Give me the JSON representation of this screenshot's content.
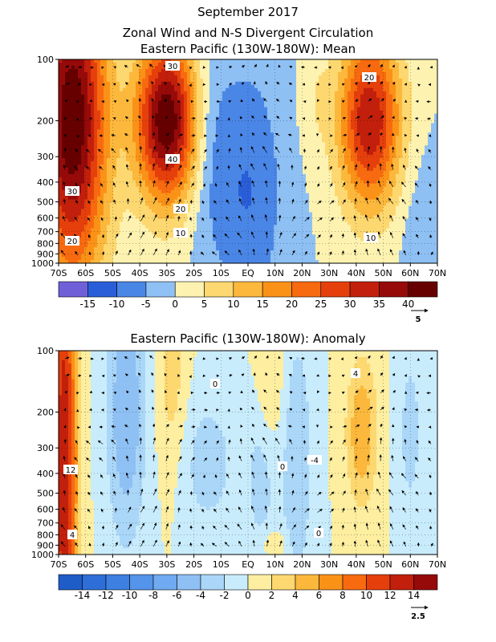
{
  "header": {
    "title": "September 2017",
    "subtitle": "Zonal Wind and N-S Divergent Circulation"
  },
  "chart_data": [
    {
      "type": "heatmap",
      "panel_title": "Eastern Pacific (130W-180W): Mean",
      "x_tick_labels": [
        "70S",
        "60S",
        "50S",
        "40S",
        "30S",
        "20S",
        "10S",
        "EQ",
        "10N",
        "20N",
        "30N",
        "40N",
        "50N",
        "60N",
        "70N"
      ],
      "x_values": [
        -70,
        -60,
        -50,
        -40,
        -30,
        -20,
        -10,
        0,
        10,
        20,
        30,
        40,
        50,
        60,
        70
      ],
      "y_tick_labels": [
        "100",
        "200",
        "300",
        "400",
        "500",
        "600",
        "700",
        "800",
        "900",
        "1000"
      ],
      "y_values": [
        100,
        200,
        300,
        400,
        500,
        600,
        700,
        800,
        900,
        1000
      ],
      "y_scale": "log-pressure (inverted)",
      "colorbar": {
        "levels": [
          -20,
          -15,
          -10,
          -5,
          0,
          5,
          10,
          15,
          20,
          25,
          30,
          35,
          40,
          45
        ],
        "labels": [
          "-15",
          "-10",
          "-5",
          "0",
          "5",
          "10",
          "15",
          "20",
          "25",
          "30",
          "35",
          "40"
        ],
        "colors": [
          "#7060d8",
          "#2a5ed8",
          "#4a86e6",
          "#8ec0f4",
          "#fdf2b0",
          "#fdd870",
          "#fcb83c",
          "#fb9218",
          "#f76a10",
          "#e5400c",
          "#c2200c",
          "#960a0a",
          "#660000"
        ]
      },
      "contour_labels": [
        "30",
        "40",
        "20",
        "10",
        "20",
        "30",
        "20",
        "10"
      ],
      "reference_vector": "5",
      "wind_max_cores": [
        {
          "lat": -65,
          "pressure": 200,
          "value": 45
        },
        {
          "lat": -30,
          "pressure": 200,
          "value": 45
        },
        {
          "lat": 45,
          "pressure": 200,
          "value": 35
        }
      ],
      "wind_min_core": {
        "lat": 0,
        "pressure": 450,
        "value": -10
      }
    },
    {
      "type": "heatmap",
      "panel_title": "Eastern Pacific (130W-180W): Anomaly",
      "x_tick_labels": [
        "70S",
        "60S",
        "50S",
        "40S",
        "30S",
        "20S",
        "10S",
        "EQ",
        "10N",
        "20N",
        "30N",
        "40N",
        "50N",
        "60N",
        "70N"
      ],
      "x_values": [
        -70,
        -60,
        -50,
        -40,
        -30,
        -20,
        -10,
        0,
        10,
        20,
        30,
        40,
        50,
        60,
        70
      ],
      "y_tick_labels": [
        "100",
        "200",
        "300",
        "400",
        "500",
        "600",
        "700",
        "800",
        "900",
        "1000"
      ],
      "y_values": [
        100,
        200,
        300,
        400,
        500,
        600,
        700,
        800,
        900,
        1000
      ],
      "y_scale": "log-pressure (inverted)",
      "colorbar": {
        "levels": [
          -16,
          -14,
          -12,
          -10,
          -8,
          -6,
          -4,
          -2,
          0,
          2,
          4,
          6,
          8,
          10,
          12,
          14,
          16
        ],
        "labels": [
          "-14",
          "-12",
          "-10",
          "-8",
          "-6",
          "-4",
          "-2",
          "0",
          "2",
          "4",
          "6",
          "8",
          "10",
          "12",
          "14"
        ],
        "colors": [
          "#1e5cc8",
          "#2e6ed8",
          "#3e80e2",
          "#5494ea",
          "#70aaf0",
          "#8ec0f4",
          "#aad6f8",
          "#c8ecfc",
          "#fdeea0",
          "#fdd870",
          "#fcb83c",
          "#fb9218",
          "#f76a10",
          "#e5400c",
          "#c2200c",
          "#960a0a"
        ]
      },
      "contour_labels": [
        "0",
        "4",
        "-4",
        "0",
        "12",
        "4",
        "0"
      ],
      "reference_vector": "2.5",
      "wind_max_cores": [
        {
          "lat": -68,
          "pressure": 400,
          "value": 14
        },
        {
          "lat": 42,
          "pressure": 250,
          "value": 6
        }
      ],
      "wind_min_core": {
        "lat": 18,
        "pressure": 350,
        "value": -4
      }
    }
  ]
}
